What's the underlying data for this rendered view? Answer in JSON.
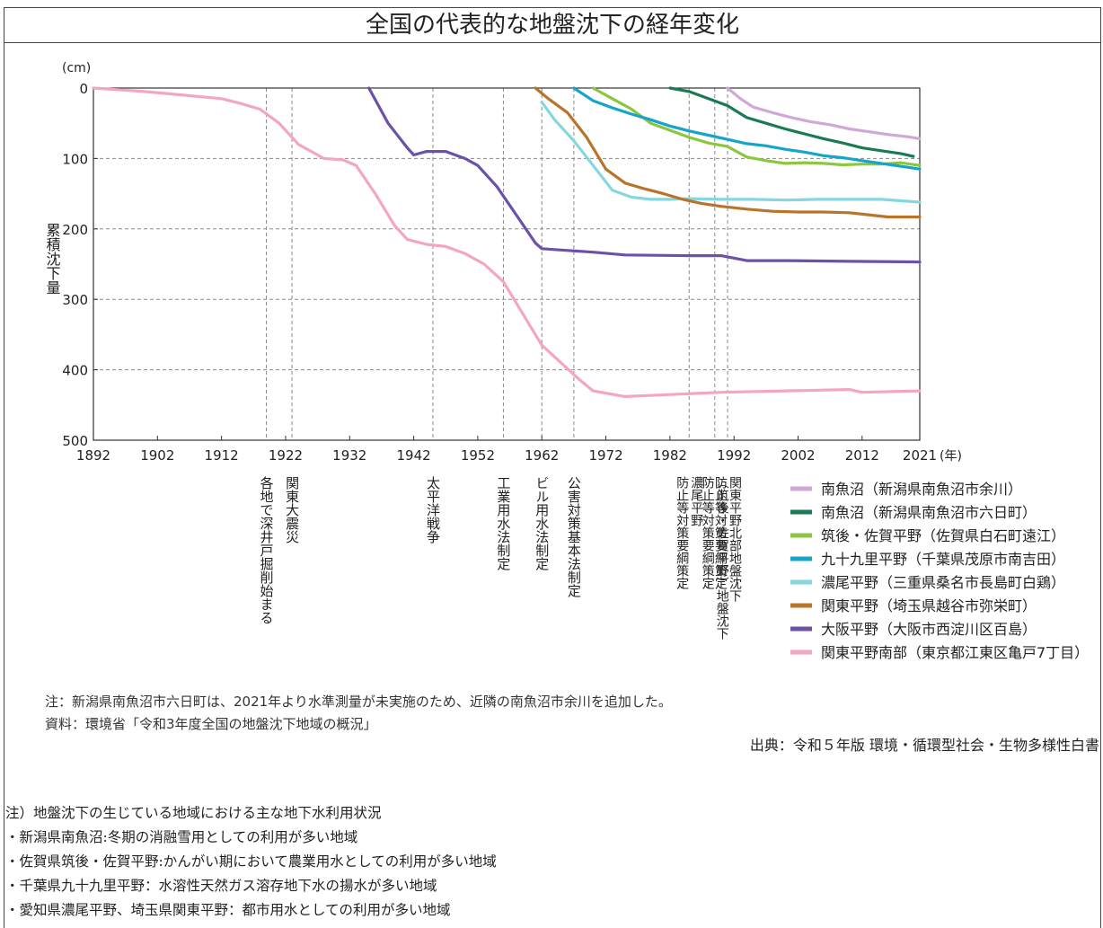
{
  "page": {
    "title": "全国の代表的な地盤沈下の経年変化",
    "note1": "注：新潟県南魚沼市六日町は、2021年より水準測量が未実施のため、近隣の南魚沼市余川を追加した。",
    "note2": "資料：環境省「令和3年度全国の地盤沈下地域の概況」",
    "source": "出典：令和５年版 環境・循環型社会・生物多様性白書",
    "bottom_notes": [
      "注）地盤沈下の生じている地域における主な地下水利用状況",
      "・新潟県南魚沼:冬期の消融雪用としての利用が多い地域",
      "・佐賀県筑後・佐賀平野:かんがい期において農業用水としての利用が多い地域",
      "・千葉県九十九里平野：水溶性天然ガス溶存地下水の揚水が多い地域",
      "・愛知県濃尾平野、埼玉県関東平野：都市用水としての利用が多い地域"
    ]
  },
  "chart_data": {
    "type": "line",
    "ylabel": "累積沈下量",
    "yunit": "(cm)",
    "xunit": "(年)",
    "xlim": [
      1892,
      2021
    ],
    "ylim": [
      0,
      500
    ],
    "y_inverted": true,
    "grid": true,
    "legend_position": "right-bottom",
    "x_ticks": [
      1892,
      1902,
      1912,
      1922,
      1932,
      1942,
      1952,
      1962,
      1972,
      1982,
      1992,
      2002,
      2012,
      2021
    ],
    "y_ticks": [
      0,
      100,
      200,
      300,
      400,
      500
    ],
    "events": [
      {
        "year": 1919,
        "label": "各地で深井戸掘削始まる"
      },
      {
        "year": 1923,
        "label": "関東大震災"
      },
      {
        "year": 1945,
        "label": "太平洋戦争"
      },
      {
        "year": 1956,
        "label": "工業用水法制定"
      },
      {
        "year": 1962,
        "label": "ビル用水法制定"
      },
      {
        "year": 1967,
        "label": "公害対策基本法制定"
      },
      {
        "year": 1985,
        "label": "濃尾平野 防止等対策要綱策定"
      },
      {
        "year": 1989,
        "label": "（筑後・佐賀平野）地盤沈下 防止等対策要綱策定"
      },
      {
        "year": 1991,
        "label": "関東平野北部地盤沈下 防止等対策要綱策定"
      }
    ],
    "series": [
      {
        "name": "南魚沼（新潟県南魚沼市余川）",
        "color": "#cfa8d8",
        "x": [
          1991,
          1993,
          1995,
          1998,
          2001,
          2004,
          2007,
          2010,
          2013,
          2016,
          2019,
          2021
        ],
        "y": [
          0,
          15,
          27,
          35,
          42,
          48,
          52,
          58,
          62,
          66,
          69,
          72
        ]
      },
      {
        "name": "南魚沼（新潟県南魚沼市六日町）",
        "color": "#1a7a52",
        "x": [
          1982,
          1985,
          1988,
          1991,
          1994,
          1997,
          2000,
          2003,
          2006,
          2009,
          2012,
          2015,
          2018,
          2020
        ],
        "y": [
          0,
          5,
          15,
          25,
          42,
          50,
          58,
          65,
          72,
          78,
          85,
          89,
          93,
          97
        ]
      },
      {
        "name": "筑後・佐賀平野（佐賀県白石町遠江）",
        "color": "#8cc63f",
        "x": [
          1970,
          1973,
          1976,
          1979,
          1982,
          1985,
          1988,
          1991,
          1994,
          1997,
          2000,
          2003,
          2006,
          2009,
          2012,
          2015,
          2018,
          2021
        ],
        "y": [
          0,
          15,
          30,
          50,
          60,
          70,
          78,
          83,
          98,
          103,
          107,
          106,
          107,
          109,
          108,
          108,
          106,
          110
        ]
      },
      {
        "name": "九十九里平野（千葉県茂原市南吉田）",
        "color": "#16a5c8",
        "x": [
          1967,
          1970,
          1973,
          1976,
          1979,
          1982,
          1985,
          1988,
          1991,
          1994,
          1997,
          2000,
          2003,
          2006,
          2009,
          2012,
          2015,
          2018,
          2021
        ],
        "y": [
          0,
          18,
          28,
          37,
          45,
          54,
          61,
          67,
          73,
          79,
          82,
          87,
          91,
          96,
          99,
          103,
          107,
          111,
          115
        ]
      },
      {
        "name": "濃尾平野（三重県桑名市長島町白鶏）",
        "color": "#86d6de",
        "x": [
          1962,
          1964,
          1967,
          1970,
          1973,
          1976,
          1979,
          1982,
          1985,
          1990,
          1995,
          2000,
          2005,
          2010,
          2015,
          2021
        ],
        "y": [
          20,
          45,
          75,
          110,
          145,
          155,
          158,
          158,
          157,
          158,
          158,
          159,
          158,
          158,
          158,
          162
        ]
      },
      {
        "name": "関東平野（埼玉県越谷市弥栄町）",
        "color": "#b8742a",
        "x": [
          1961,
          1963,
          1966,
          1969,
          1972,
          1975,
          1978,
          1981,
          1984,
          1987,
          1990,
          1994,
          1998,
          2002,
          2006,
          2010,
          2013,
          2016,
          2019,
          2021
        ],
        "y": [
          0,
          15,
          35,
          70,
          115,
          135,
          143,
          150,
          158,
          164,
          168,
          172,
          175,
          176,
          176,
          177,
          180,
          183,
          183,
          183
        ]
      },
      {
        "name": "大阪平野（大阪市西淀川区百島）",
        "color": "#6b51a8",
        "x": [
          1935,
          1938,
          1941,
          1942,
          1944,
          1947,
          1950,
          1952,
          1955,
          1958,
          1961,
          1962,
          1965,
          1970,
          1975,
          1985,
          1990,
          1994,
          2000,
          2010,
          2021
        ],
        "y": [
          0,
          50,
          85,
          95,
          90,
          90,
          100,
          110,
          140,
          180,
          220,
          228,
          230,
          233,
          237,
          238,
          238,
          245,
          245,
          246,
          247
        ]
      },
      {
        "name": "関東平野南部（東京都江東区亀戸7丁目）",
        "color": "#f4a6bd",
        "x": [
          1892,
          1900,
          1912,
          1915,
          1918,
          1921,
          1924,
          1928,
          1931,
          1933,
          1936,
          1939,
          1941,
          1944,
          1947,
          1950,
          1953,
          1956,
          1959,
          1962,
          1965,
          1968,
          1970,
          1975,
          1980,
          1990,
          2000,
          2010,
          2012,
          2021
        ],
        "y": [
          0,
          5,
          15,
          22,
          30,
          50,
          80,
          100,
          102,
          110,
          150,
          195,
          215,
          222,
          225,
          235,
          250,
          275,
          320,
          365,
          390,
          415,
          430,
          438,
          436,
          432,
          430,
          428,
          432,
          430
        ]
      }
    ]
  }
}
